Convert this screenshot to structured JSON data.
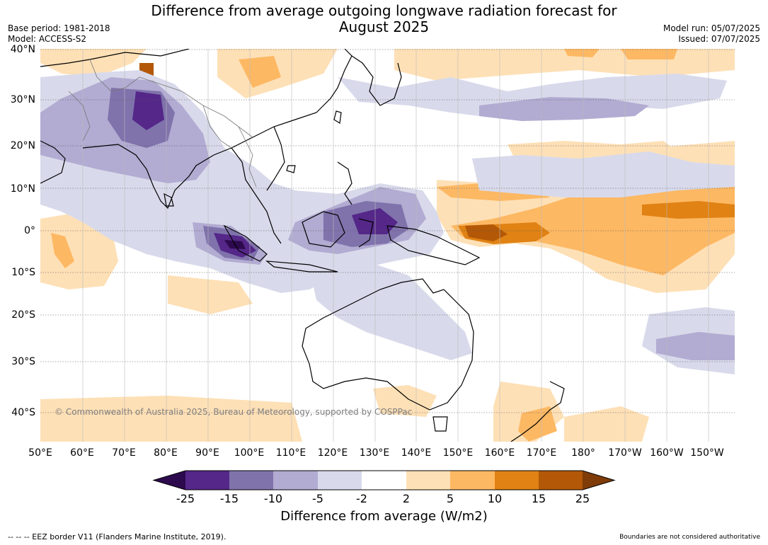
{
  "title_line1": "Difference from average outgoing longwave radiation forecast for",
  "title_line2": "August 2025",
  "base_period": "Base period: 1981-2018",
  "model": "Model: ACCESS-S2",
  "model_run": "Model run: 05/07/2025",
  "issued": "Issued: 07/07/2025",
  "lat_labels": [
    "40°N",
    "30°N",
    "20°N",
    "10°N",
    "0°",
    "10°S",
    "20°S",
    "30°S",
    "40°S"
  ],
  "lon_labels": [
    "50°E",
    "60°E",
    "70°E",
    "80°E",
    "90°E",
    "100°E",
    "110°E",
    "120°E",
    "130°E",
    "140°E",
    "150°E",
    "160°E",
    "170°E",
    "180°",
    "170°W",
    "160°W",
    "150°W"
  ],
  "copyright": "© Commonwealth of Australia 2025, Bureau of Meteorology, supported by COSPPac",
  "colorbar": {
    "ticks": [
      "-25",
      "-15",
      "-10",
      "-5",
      "-2",
      "2",
      "5",
      "10",
      "15",
      "25"
    ],
    "colors": [
      "#2d0a4e",
      "#542788",
      "#8073ac",
      "#b2abd2",
      "#d8daeb",
      "#ffffff",
      "#fee0b6",
      "#fdb863",
      "#e08214",
      "#b35806",
      "#7f3b08"
    ],
    "title": "Difference from average (W/m2)"
  },
  "eez_note": "--  --  -- EEZ border V11 (Flanders Marine Institute, 2019).",
  "boundaries_note": "Boundaries are not considered authoritative"
}
